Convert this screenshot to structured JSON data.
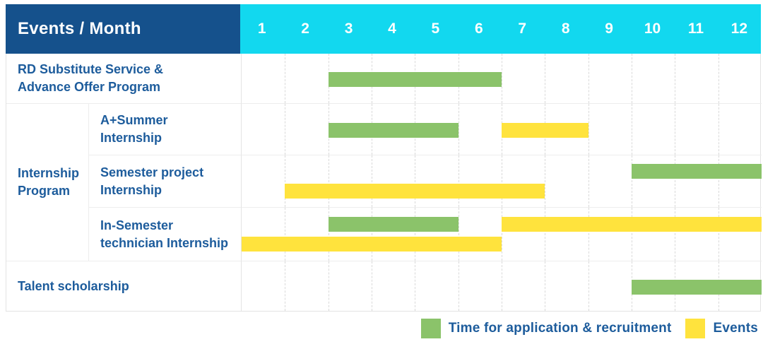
{
  "header": {
    "title": "Events / Month",
    "months": [
      "1",
      "2",
      "3",
      "4",
      "5",
      "6",
      "7",
      "8",
      "9",
      "10",
      "11",
      "12"
    ]
  },
  "colors": {
    "header_bg": "#15518c",
    "months_bg": "#12d8ef",
    "label_text": "#1d5c9c",
    "green": "#8bc36a",
    "yellow": "#ffe33d"
  },
  "chart_data": {
    "type": "gantt",
    "title": "Events / Month",
    "x_categories": [
      "1",
      "2",
      "3",
      "4",
      "5",
      "6",
      "7",
      "8",
      "9",
      "10",
      "11",
      "12"
    ],
    "x_range": [
      1,
      12
    ],
    "grid": "dashed-vertical-month-lines",
    "legend_position": "bottom-right",
    "series_legend": [
      {
        "label": "Time for application & recruitment",
        "color": "#8bc36a"
      },
      {
        "label": "Events",
        "color": "#ffe33d"
      }
    ],
    "rows": [
      {
        "label": "RD Substitute Service &\nAdvance Offer Program",
        "bars": [
          {
            "series": 0,
            "start": 3,
            "end": 6,
            "lane": "mid"
          }
        ]
      },
      {
        "group": "Internship\nProgram",
        "group_plain": "Internship Program",
        "label": "A+Summer\nInternship",
        "bars": [
          {
            "series": 0,
            "start": 3,
            "end": 5,
            "lane": "mid"
          },
          {
            "series": 1,
            "start": 7,
            "end": 8,
            "lane": "mid"
          }
        ]
      },
      {
        "group_plain": "Internship Program",
        "label": "Semester project\nInternship",
        "bars": [
          {
            "series": 0,
            "start": 10,
            "end": 12,
            "lane": "top"
          },
          {
            "series": 1,
            "start": 2,
            "end": 7,
            "lane": "bottom"
          }
        ]
      },
      {
        "group_plain": "Internship Program",
        "label": "In-Semester\ntechnician Internship",
        "bars": [
          {
            "series": 0,
            "start": 3,
            "end": 5,
            "lane": "top"
          },
          {
            "series": 1,
            "start": 7,
            "end": 12,
            "lane": "top"
          },
          {
            "series": 1,
            "start": 1,
            "end": 6,
            "lane": "bottom"
          }
        ]
      },
      {
        "label": "Talent scholarship",
        "bars": [
          {
            "series": 0,
            "start": 10,
            "end": 12,
            "lane": "mid"
          }
        ]
      }
    ]
  },
  "legend": {
    "items": [
      {
        "label": "Time for application & recruitment",
        "color": "#8bc36a"
      },
      {
        "label": "Events",
        "color": "#ffe33d"
      }
    ]
  }
}
